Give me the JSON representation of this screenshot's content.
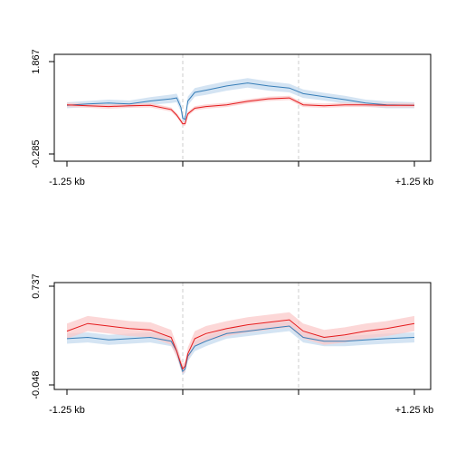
{
  "chart_data": [
    {
      "type": "line",
      "ylim": [
        -0.285,
        1.867
      ],
      "y_tick_labels": [
        "-0.285",
        "1.867"
      ],
      "x_tick_labels": [
        "-1.25 kb",
        "",
        "",
        "+1.25 kb"
      ],
      "x_ticks": [
        -1.25,
        -0.4167,
        0.4167,
        1.25
      ],
      "x_range": [
        -1.25,
        1.25
      ],
      "vertical_reference_lines": [
        -0.4167,
        0.4167
      ],
      "grid": false,
      "legend": "none",
      "series": [
        {
          "color": "#377EB8",
          "band_color": "#C6DBEF",
          "x": [
            -1.25,
            -1.1,
            -0.95,
            -0.8,
            -0.65,
            -0.5,
            -0.46,
            -0.43,
            -0.417,
            -0.4,
            -0.38,
            -0.33,
            -0.25,
            -0.1,
            0.05,
            0.2,
            0.35,
            0.45,
            0.6,
            0.75,
            0.9,
            1.05,
            1.25
          ],
          "values": [
            0.85,
            0.88,
            0.9,
            0.88,
            0.95,
            1.0,
            1.02,
            0.8,
            0.55,
            0.52,
            0.95,
            1.15,
            1.2,
            1.3,
            1.37,
            1.3,
            1.25,
            1.12,
            1.05,
            0.98,
            0.9,
            0.86,
            0.85
          ],
          "band": [
            0.07,
            0.07,
            0.08,
            0.08,
            0.09,
            0.1,
            0.1,
            0.1,
            0.08,
            0.08,
            0.1,
            0.1,
            0.11,
            0.11,
            0.11,
            0.11,
            0.1,
            0.1,
            0.09,
            0.09,
            0.08,
            0.08,
            0.07
          ]
        },
        {
          "color": "#E41A1C",
          "band_color": "#FBCACA",
          "x": [
            -1.25,
            -1.1,
            -0.95,
            -0.8,
            -0.65,
            -0.5,
            -0.46,
            -0.43,
            -0.417,
            -0.4,
            -0.38,
            -0.33,
            -0.25,
            -0.1,
            0.05,
            0.2,
            0.35,
            0.45,
            0.6,
            0.75,
            0.9,
            1.05,
            1.25
          ],
          "values": [
            0.86,
            0.84,
            0.82,
            0.84,
            0.85,
            0.75,
            0.62,
            0.48,
            0.42,
            0.42,
            0.65,
            0.78,
            0.82,
            0.86,
            0.94,
            1.0,
            1.02,
            0.86,
            0.84,
            0.86,
            0.86,
            0.85,
            0.85
          ],
          "band": [
            0.05,
            0.05,
            0.05,
            0.05,
            0.05,
            0.05,
            0.05,
            0.05,
            0.05,
            0.05,
            0.05,
            0.05,
            0.05,
            0.05,
            0.05,
            0.05,
            0.05,
            0.05,
            0.05,
            0.05,
            0.05,
            0.05,
            0.05
          ]
        }
      ]
    },
    {
      "type": "line",
      "ylim": [
        -0.048,
        0.737
      ],
      "y_tick_labels": [
        "-0.048",
        "0.737"
      ],
      "x_tick_labels": [
        "-1.25 kb",
        "",
        "",
        "+1.25 kb"
      ],
      "x_ticks": [
        -1.25,
        -0.4167,
        0.4167,
        1.25
      ],
      "x_range": [
        -1.25,
        1.25
      ],
      "vertical_reference_lines": [
        -0.4167,
        0.4167
      ],
      "grid": false,
      "legend": "none",
      "series": [
        {
          "color": "#377EB8",
          "band_color": "#C6DBEF",
          "x": [
            -1.25,
            -1.1,
            -0.95,
            -0.8,
            -0.65,
            -0.5,
            -0.46,
            -0.43,
            -0.417,
            -0.4,
            -0.38,
            -0.33,
            -0.25,
            -0.1,
            0.05,
            0.2,
            0.35,
            0.45,
            0.6,
            0.75,
            0.9,
            1.05,
            1.25
          ],
          "values": [
            0.32,
            0.33,
            0.31,
            0.32,
            0.33,
            0.3,
            0.22,
            0.1,
            0.06,
            0.08,
            0.18,
            0.26,
            0.3,
            0.36,
            0.38,
            0.4,
            0.42,
            0.33,
            0.3,
            0.3,
            0.31,
            0.32,
            0.33
          ],
          "band": [
            0.04,
            0.04,
            0.04,
            0.04,
            0.04,
            0.04,
            0.04,
            0.03,
            0.03,
            0.03,
            0.04,
            0.04,
            0.04,
            0.04,
            0.04,
            0.04,
            0.04,
            0.04,
            0.04,
            0.04,
            0.04,
            0.04,
            0.04
          ]
        },
        {
          "color": "#E41A1C",
          "band_color": "#FBCACA",
          "x": [
            -1.25,
            -1.1,
            -0.95,
            -0.8,
            -0.65,
            -0.5,
            -0.46,
            -0.43,
            -0.417,
            -0.4,
            -0.38,
            -0.33,
            -0.25,
            -0.1,
            0.05,
            0.2,
            0.35,
            0.45,
            0.6,
            0.75,
            0.9,
            1.05,
            1.25
          ],
          "values": [
            0.38,
            0.44,
            0.42,
            0.4,
            0.39,
            0.33,
            0.22,
            0.12,
            0.08,
            0.1,
            0.2,
            0.32,
            0.36,
            0.4,
            0.43,
            0.45,
            0.47,
            0.38,
            0.33,
            0.35,
            0.38,
            0.4,
            0.44
          ],
          "band": [
            0.06,
            0.06,
            0.06,
            0.06,
            0.06,
            0.06,
            0.05,
            0.04,
            0.04,
            0.04,
            0.05,
            0.06,
            0.06,
            0.06,
            0.06,
            0.06,
            0.06,
            0.06,
            0.06,
            0.06,
            0.06,
            0.06,
            0.06
          ]
        }
      ]
    }
  ]
}
